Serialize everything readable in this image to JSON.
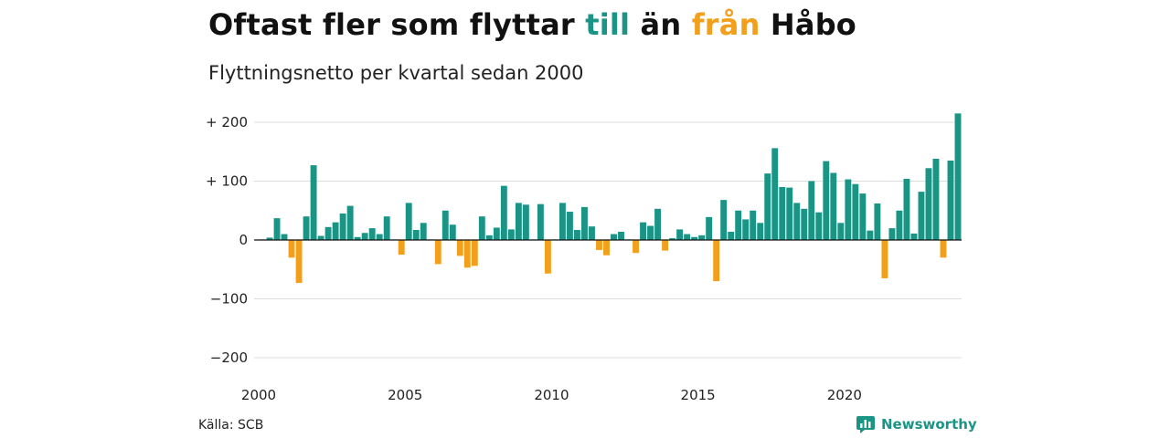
{
  "title": {
    "part1": "Oftast fler som flyttar ",
    "word_in": "till",
    "part2": " än ",
    "word_out": "från",
    "part3": " Håbo"
  },
  "subtitle": "Flyttningsnetto per kvartal sedan 2000",
  "source": "Källa: SCB",
  "brand": {
    "name": "Newsworthy"
  },
  "colors": {
    "positive": "#1a9484",
    "negative": "#f2a01c",
    "brand": "#1a9484"
  },
  "chart_data": {
    "type": "bar",
    "title": "Oftast fler som flyttar till än från Håbo",
    "subtitle": "Flyttningsnetto per kvartal sedan 2000",
    "x_start": "2000 Q1",
    "y_ticks": [
      200,
      100,
      0,
      -100,
      -200
    ],
    "y_tick_labels": [
      "+ 200",
      "+ 100",
      "0",
      "−100",
      "−200"
    ],
    "x_tick_labels": [
      "2000",
      "2005",
      "2010",
      "2015",
      "2020"
    ],
    "ylim": [
      -230,
      215
    ],
    "grid": true,
    "values": [
      1,
      4,
      37,
      10,
      -30,
      -73,
      40,
      127,
      7,
      22,
      30,
      45,
      58,
      5,
      12,
      20,
      10,
      40,
      1,
      -25,
      63,
      17,
      29,
      1,
      -41,
      50,
      26,
      -27,
      -47,
      -44,
      40,
      8,
      21,
      92,
      18,
      63,
      60,
      1,
      61,
      -57,
      1,
      63,
      48,
      17,
      56,
      23,
      -17,
      -26,
      10,
      14,
      1,
      -22,
      30,
      24,
      53,
      -18,
      3,
      18,
      10,
      5,
      8,
      39,
      -70,
      68,
      14,
      50,
      35,
      50,
      29,
      113,
      156,
      90,
      89,
      63,
      53,
      100,
      47,
      134,
      114,
      29,
      103,
      95,
      79,
      16,
      62,
      -65,
      20,
      50,
      104,
      11,
      82,
      122,
      138,
      -30,
      135,
      215
    ]
  }
}
